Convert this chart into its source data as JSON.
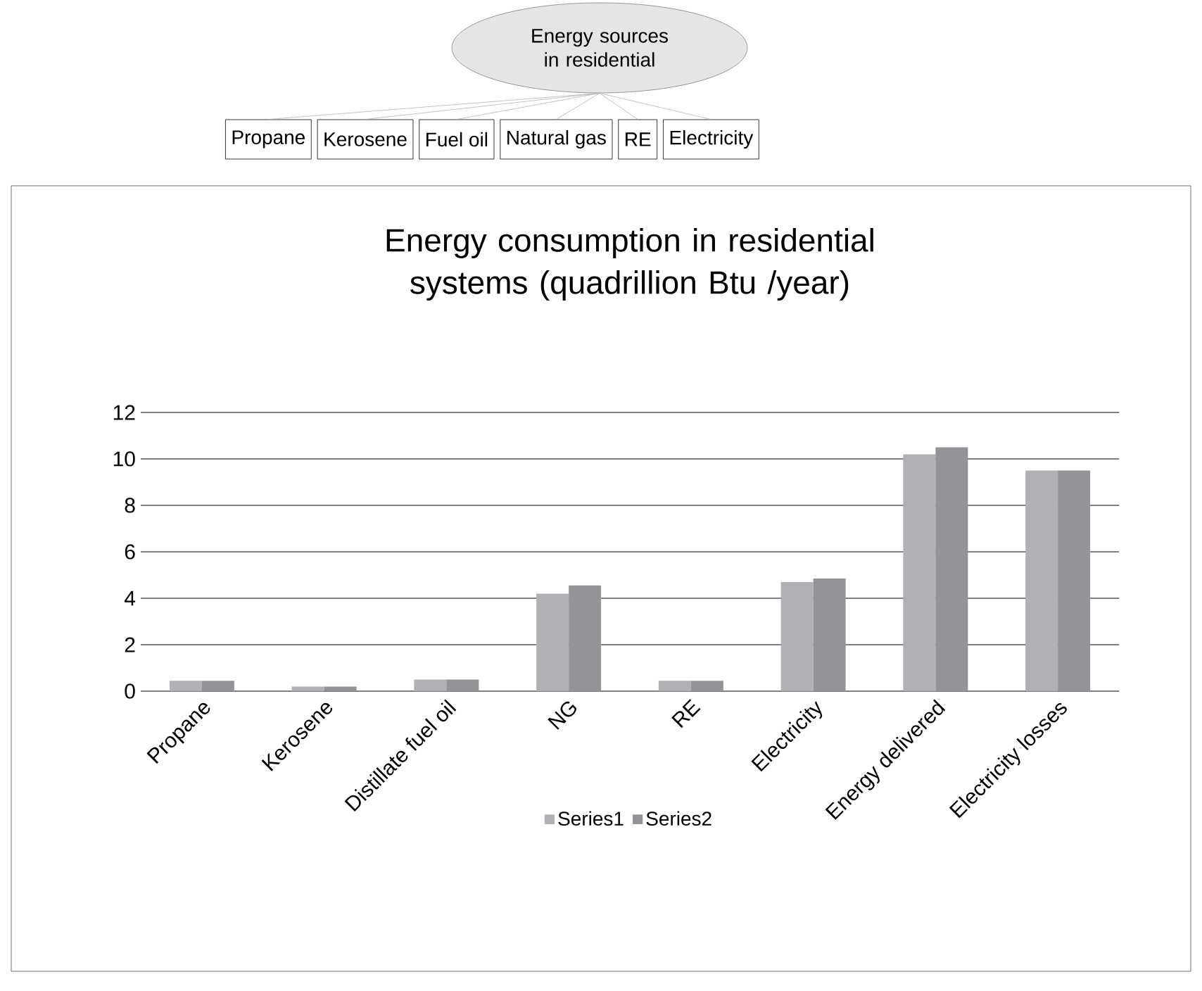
{
  "chart_data": {
    "type": "bar",
    "title": "Energy consumption in residential systems (quadrillion Btu /year)",
    "categories": [
      "Propane",
      "Kerosene",
      "Distillate fuel oil",
      "NG",
      "RE",
      "Electricity",
      "Energy delivered",
      "Electricity losses"
    ],
    "series": [
      {
        "name": "Series1",
        "color": "#b0b1b4",
        "values": [
          0.45,
          0.2,
          0.5,
          4.2,
          0.45,
          4.7,
          10.2,
          9.5
        ]
      },
      {
        "name": "Series2",
        "color": "#939497",
        "values": [
          0.45,
          0.2,
          0.5,
          4.55,
          0.45,
          4.85,
          10.5,
          9.5
        ]
      }
    ],
    "ylim": [
      0,
      12
    ],
    "yticks": [
      0,
      2,
      4,
      6,
      8,
      10,
      12
    ],
    "grid": "y",
    "legend": "bottom",
    "annotations": [
      "Energy sources in residential",
      "Propane",
      "Kerosene",
      "Fuel oil",
      "Natural gas",
      "RE",
      "Electricity"
    ]
  }
}
